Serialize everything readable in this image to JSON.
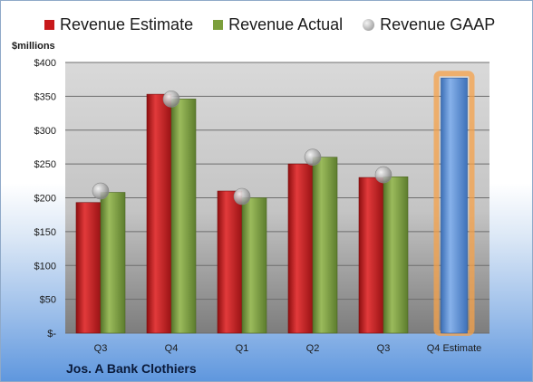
{
  "chart_data": {
    "type": "bar",
    "title": "",
    "ylabel": "$millions",
    "xlabel": "",
    "ylim": [
      0,
      400
    ],
    "yticks": [
      "$-",
      "$50",
      "$100",
      "$150",
      "$200",
      "$250",
      "$300",
      "$350",
      "$400"
    ],
    "categories": [
      "Q3",
      "Q4",
      "Q1",
      "Q2",
      "Q3",
      "Q4 Estimate"
    ],
    "series": [
      {
        "name": "Revenue Estimate",
        "type": "bar",
        "color": "#c8191b",
        "values": [
          193,
          353,
          210,
          250,
          230,
          null
        ]
      },
      {
        "name": "Revenue Actual",
        "type": "bar",
        "color": "#7c9f3c",
        "values": [
          208,
          346,
          200,
          260,
          231,
          null
        ]
      },
      {
        "name": "Revenue GAAP",
        "type": "marker",
        "color": "#b0b0b0",
        "values": [
          210,
          346,
          202,
          260,
          234,
          null
        ]
      }
    ],
    "estimate_bar": {
      "category": "Q4 Estimate",
      "value": 377,
      "color": "#4f86d4",
      "glow": "#f5a24a"
    },
    "grid": true,
    "legend_position": "top"
  },
  "footer": {
    "company": "Jos. A Bank Clothiers"
  }
}
